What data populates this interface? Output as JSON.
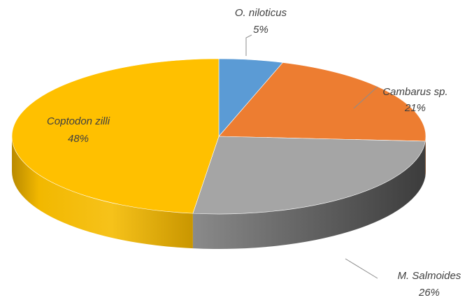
{
  "chart_data": {
    "type": "pie",
    "title": "",
    "style": "3d-tilted",
    "slices": [
      {
        "label": "O. niloticus",
        "value": 5,
        "value_label": "5%",
        "color": "#5B9BD5"
      },
      {
        "label": "Cambarus sp.",
        "value": 21,
        "value_label": "21%",
        "color": "#ED7D31"
      },
      {
        "label": "M. Salmoides",
        "value": 26,
        "value_label": "26%",
        "color": "#A5A5A5"
      },
      {
        "label": "Coptodon zilli",
        "value": 48,
        "value_label": "48%",
        "color": "#FFC000"
      }
    ]
  }
}
